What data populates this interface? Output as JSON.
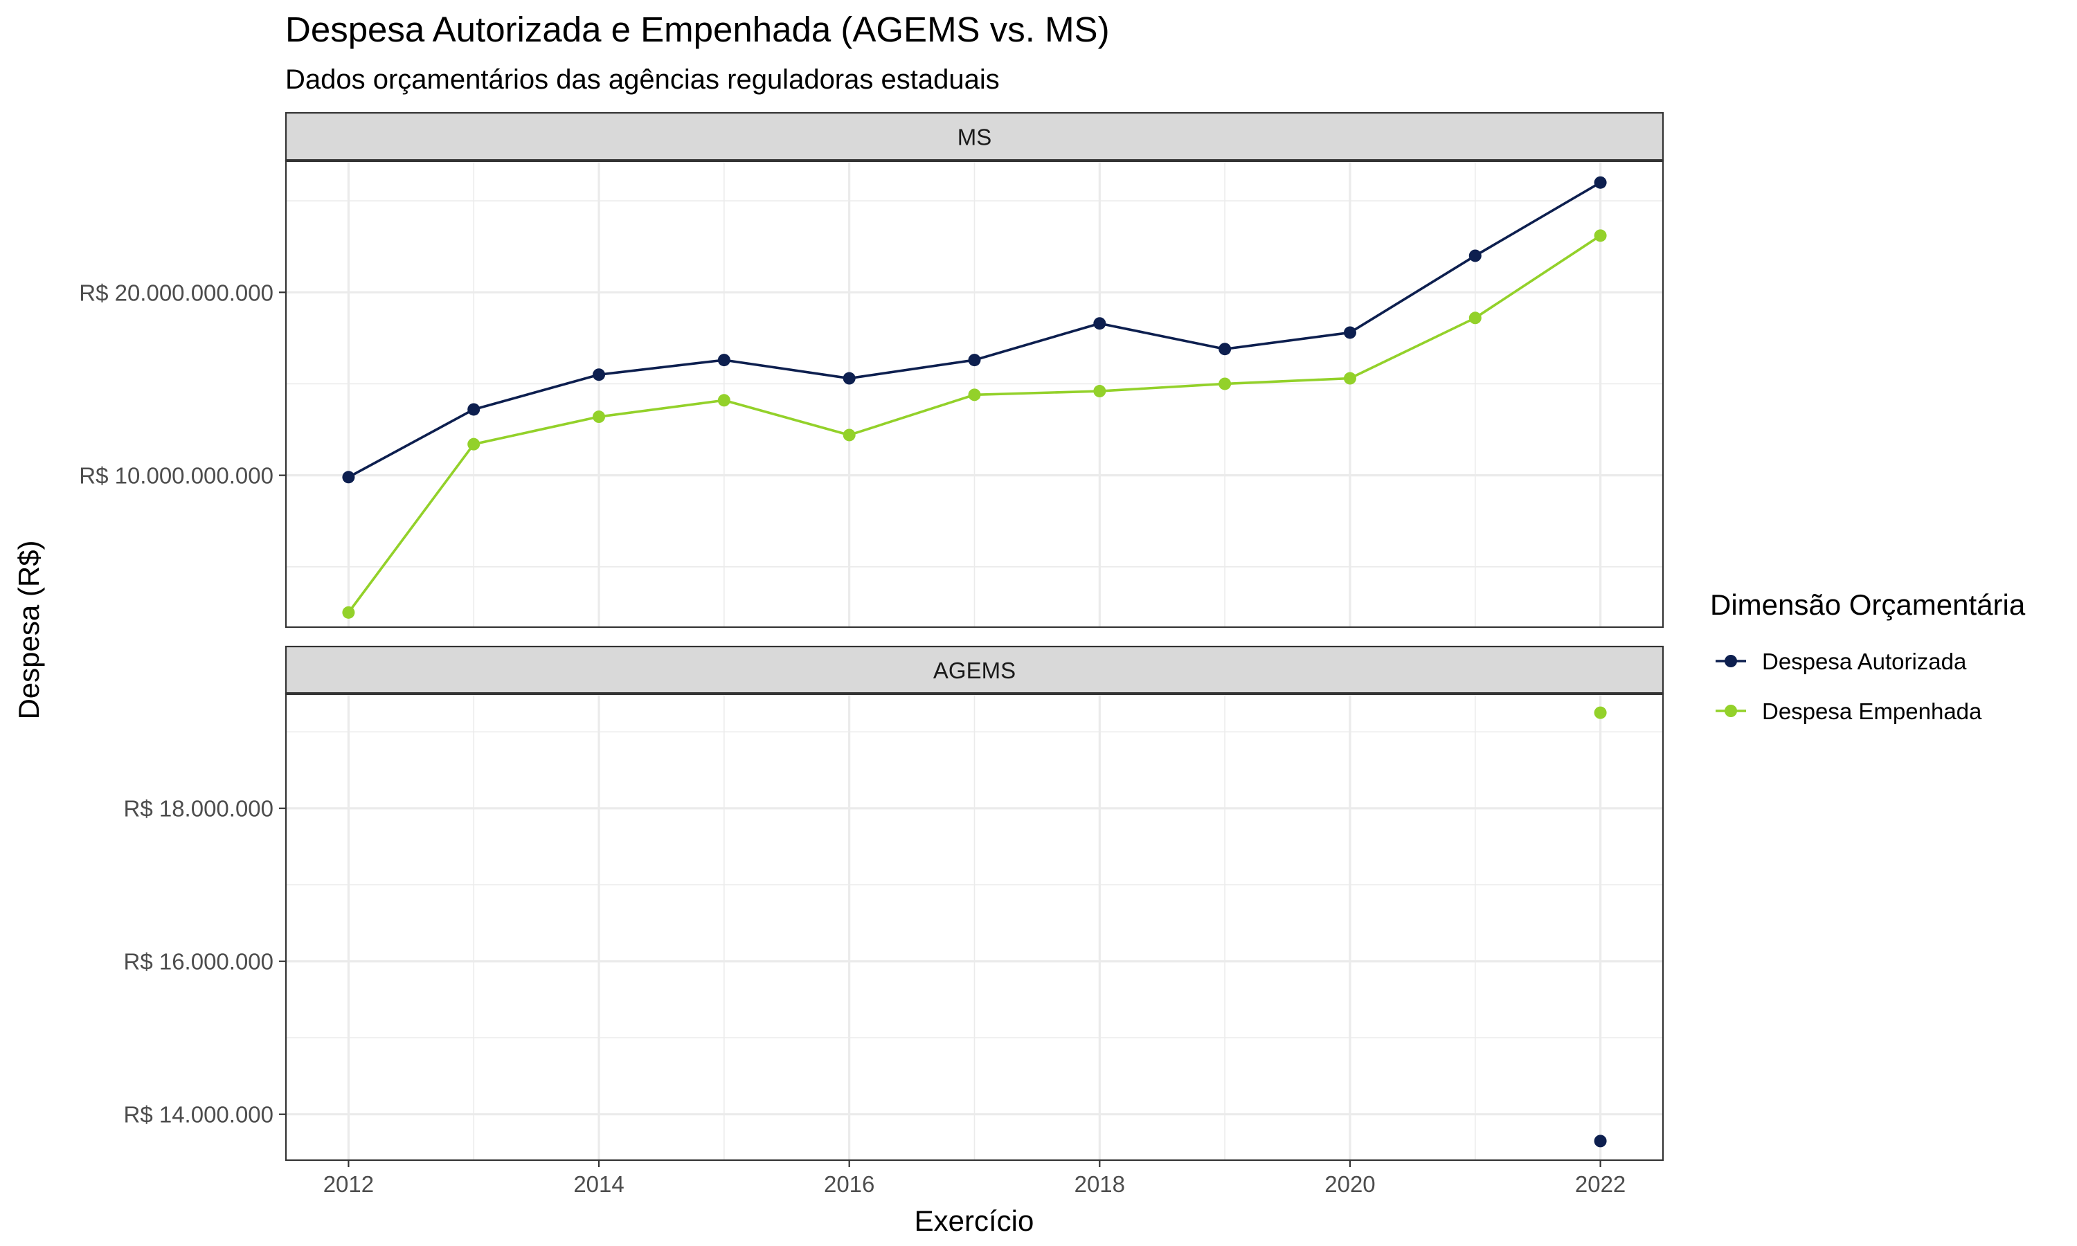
{
  "chart_data": {
    "type": "line",
    "title": "Despesa Autorizada e Empenhada (AGEMS vs. MS)",
    "subtitle": "Dados orçamentários das agências reguladoras estaduais",
    "xlabel": "Exercício",
    "ylabel": "Despesa (R$)",
    "x_ticks": [
      "2012",
      "2014",
      "2016",
      "2018",
      "2020",
      "2022"
    ],
    "xlim": [
      2011.5,
      2022.5
    ],
    "grid": true,
    "legend": {
      "title": "Dimensão Orçamentária",
      "placement": "right",
      "entries": [
        "Despesa Autorizada",
        "Despesa Empenhada"
      ]
    },
    "colors": {
      "Despesa Autorizada": "#0d1f4f",
      "Despesa Empenhada": "#93d12a"
    },
    "panels": [
      {
        "name": "MS",
        "ylim": [
          1700000000,
          27200000000
        ],
        "y_ticks": [
          10000000000,
          20000000000
        ],
        "y_tick_labels": [
          "R$ 10.000.000.000",
          "R$ 20.000.000.000"
        ],
        "x": [
          2012,
          2013,
          2014,
          2015,
          2016,
          2017,
          2018,
          2019,
          2020,
          2021,
          2022
        ],
        "series": [
          {
            "name": "Despesa Autorizada",
            "values": [
              9900000000,
              13600000000,
              15500000000,
              16300000000,
              15300000000,
              16300000000,
              18300000000,
              16900000000,
              17800000000,
              22000000000,
              26000000000
            ]
          },
          {
            "name": "Despesa Empenhada",
            "values": [
              2500000000,
              11700000000,
              13200000000,
              14100000000,
              12200000000,
              14400000000,
              14600000000,
              15000000000,
              15300000000,
              18600000000,
              23100000000
            ]
          }
        ]
      },
      {
        "name": "AGEMS",
        "ylim": [
          13400000,
          19500000
        ],
        "y_ticks": [
          14000000,
          16000000,
          18000000
        ],
        "y_tick_labels": [
          "R$ 14.000.000",
          "R$ 16.000.000",
          "R$ 18.000.000"
        ],
        "x": [
          2022
        ],
        "series": [
          {
            "name": "Despesa Autorizada",
            "values": [
              13650000
            ]
          },
          {
            "name": "Despesa Empenhada",
            "values": [
              19250000
            ]
          }
        ]
      }
    ]
  }
}
